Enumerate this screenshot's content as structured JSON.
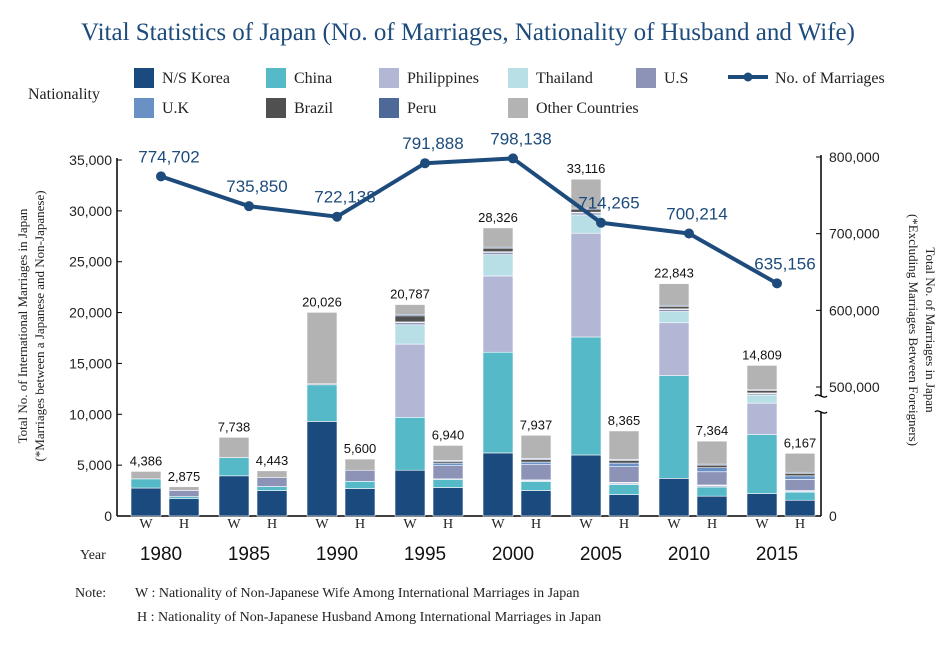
{
  "title": "Vital Statistics of Japan (No. of Marriages, Nationality of Husband and Wife)",
  "legend": {
    "title": "Nationality",
    "items": [
      {
        "key": "korea",
        "label": "N/S Korea",
        "color": "#1b4a7f"
      },
      {
        "key": "china",
        "label": "China",
        "color": "#55b9c8"
      },
      {
        "key": "philippines",
        "label": "Philippines",
        "color": "#b2b7d6"
      },
      {
        "key": "thailand",
        "label": "Thailand",
        "color": "#b9dfe6"
      },
      {
        "key": "us",
        "label": "U.S",
        "color": "#8c93b7"
      },
      {
        "key": "uk",
        "label": "U.K",
        "color": "#6991c6"
      },
      {
        "key": "brazil",
        "label": "Brazil",
        "color": "#505050"
      },
      {
        "key": "peru",
        "label": "Peru",
        "color": "#4e6898"
      },
      {
        "key": "other",
        "label": "Other Countries",
        "color": "#b3b3b3"
      }
    ],
    "line_label": "No. of Marriages",
    "line_color": "#1d4b7c"
  },
  "axes": {
    "left_label": "Total No. of International Marriages in Japan",
    "left_label2": "(*Marriages between a Japanese and Non-Japanese)",
    "right_label": "Total No. of Marriages in Japan",
    "right_label2": "(*Excluding Marriages Between Foreigners)",
    "year_label": "Year",
    "left_ticks": [
      "35,000",
      "30,000",
      "25,000",
      "20,000",
      "15,000",
      "10,000",
      "5,000",
      "0"
    ],
    "right_ticks": [
      "800,000",
      "700,000",
      "600,000",
      "500,000",
      "0"
    ]
  },
  "chart_data": {
    "type": "bar",
    "stacked": true,
    "years": [
      "1980",
      "1985",
      "1990",
      "1995",
      "2000",
      "2005",
      "2010",
      "2015"
    ],
    "groups": [
      "W",
      "H"
    ],
    "ylim_left": [
      0,
      35000
    ],
    "ylim_right": [
      0,
      800000
    ],
    "right_axis_break_below": 450000,
    "stack_order": [
      "korea",
      "china",
      "philippines",
      "thailand",
      "us",
      "uk",
      "brazil",
      "peru",
      "other"
    ],
    "wives": [
      {
        "year": "1980",
        "total": 4386,
        "label": "4,386",
        "korea": 2750,
        "china": 900,
        "philippines": 0,
        "thailand": 0,
        "us": 0,
        "uk": 0,
        "brazil": 0,
        "peru": 0,
        "other": 736
      },
      {
        "year": "1985",
        "total": 7738,
        "label": "7,738",
        "korea": 3950,
        "china": 1800,
        "philippines": 0,
        "thailand": 0,
        "us": 0,
        "uk": 0,
        "brazil": 0,
        "peru": 0,
        "other": 1988
      },
      {
        "year": "1990",
        "total": 20026,
        "label": "20,026",
        "korea": 9300,
        "china": 3600,
        "philippines": 0,
        "thailand": 0,
        "us": 100,
        "uk": 0,
        "brazil": 0,
        "peru": 0,
        "other": 7026
      },
      {
        "year": "1995",
        "total": 20787,
        "label": "20,787",
        "korea": 4500,
        "china": 5200,
        "philippines": 7200,
        "thailand": 1900,
        "us": 200,
        "uk": 80,
        "brazil": 600,
        "peru": 150,
        "other": 957
      },
      {
        "year": "2000",
        "total": 28326,
        "label": "28,326",
        "korea": 6200,
        "china": 9900,
        "philippines": 7500,
        "thailand": 2100,
        "us": 200,
        "uk": 80,
        "brazil": 350,
        "peru": 100,
        "other": 1896
      },
      {
        "year": "2005",
        "total": 33116,
        "label": "33,116",
        "korea": 6000,
        "china": 11600,
        "philippines": 10200,
        "thailand": 1800,
        "us": 200,
        "uk": 70,
        "brazil": 300,
        "peru": 100,
        "other": 2846
      },
      {
        "year": "2010",
        "total": 22843,
        "label": "22,843",
        "korea": 3700,
        "china": 10100,
        "philippines": 5200,
        "thailand": 1100,
        "us": 200,
        "uk": 70,
        "brazil": 250,
        "peru": 100,
        "other": 2123
      },
      {
        "year": "2015",
        "total": 14809,
        "label": "14,809",
        "korea": 2200,
        "china": 5800,
        "philippines": 3100,
        "thailand": 800,
        "us": 150,
        "uk": 50,
        "brazil": 250,
        "peru": 100,
        "other": 2359
      }
    ],
    "husbands": [
      {
        "year": "1980",
        "total": 2875,
        "label": "2,875",
        "korea": 1700,
        "china": 200,
        "philippines": 0,
        "thailand": 0,
        "us": 600,
        "uk": 0,
        "brazil": 0,
        "peru": 0,
        "other": 375
      },
      {
        "year": "1985",
        "total": 4443,
        "label": "4,443",
        "korea": 2500,
        "china": 400,
        "philippines": 0,
        "thailand": 0,
        "us": 900,
        "uk": 0,
        "brazil": 0,
        "peru": 0,
        "other": 643
      },
      {
        "year": "1990",
        "total": 5600,
        "label": "5,600",
        "korea": 2700,
        "china": 700,
        "philippines": 0,
        "thailand": 0,
        "us": 1100,
        "uk": 0,
        "brazil": 0,
        "peru": 0,
        "other": 1100
      },
      {
        "year": "1995",
        "total": 6940,
        "label": "6,940",
        "korea": 2800,
        "china": 800,
        "philippines": 50,
        "thailand": 0,
        "us": 1300,
        "uk": 250,
        "brazil": 150,
        "peru": 100,
        "other": 1490
      },
      {
        "year": "2000",
        "total": 7937,
        "label": "7,937",
        "korea": 2500,
        "china": 900,
        "philippines": 100,
        "thailand": 50,
        "us": 1500,
        "uk": 250,
        "brazil": 250,
        "peru": 100,
        "other": 2287
      },
      {
        "year": "2005",
        "total": 8365,
        "label": "8,365",
        "korea": 2100,
        "china": 1000,
        "philippines": 150,
        "thailand": 50,
        "us": 1550,
        "uk": 350,
        "brazil": 250,
        "peru": 100,
        "other": 2815
      },
      {
        "year": "2010",
        "total": 7364,
        "label": "7,364",
        "korea": 1950,
        "china": 900,
        "philippines": 150,
        "thailand": 50,
        "us": 1300,
        "uk": 400,
        "brazil": 250,
        "peru": 100,
        "other": 2264
      },
      {
        "year": "2015",
        "total": 6167,
        "label": "6,167",
        "korea": 1550,
        "china": 800,
        "philippines": 100,
        "thailand": 50,
        "us": 1100,
        "uk": 350,
        "brazil": 250,
        "peru": 100,
        "other": 1867
      }
    ],
    "line": {
      "name": "No. of Marriages",
      "values": [
        774702,
        735850,
        722138,
        791888,
        798138,
        714265,
        700214,
        635156
      ],
      "labels": [
        "774,702",
        "735,850",
        "722,138",
        "791,888",
        "798,138",
        "714,265",
        "700,214",
        "635,156"
      ]
    }
  },
  "note": {
    "label": "Note:",
    "w_line": "W : Nationality of Non-Japanese Wife Among International Marriages in Japan",
    "h_line": "H : Nationality of Non-Japanese Husband Among International Marriages in Japan"
  }
}
